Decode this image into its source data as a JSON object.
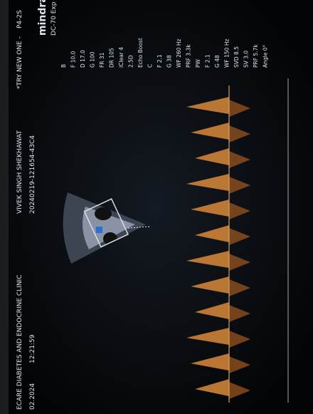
{
  "screen": {
    "clinic": "ECARE DIABETES AND ENDOCRINE CLINIC",
    "patient": "VIVEK SINGH SHEKHAWAT",
    "note": "*TRY NEW ONE -",
    "probe": "P4-2S",
    "brand": "mindray",
    "model": "DC-70 Exp",
    "date": "02.2024",
    "time": "12:21:59",
    "study_id": "20240219-121654-43C4",
    "parameters": [
      "B",
      "F 10.0",
      "D 17.0",
      "G 100",
      "FR 31",
      "DR 105",
      "iClear 4",
      "2.5D",
      "Echo Boost",
      "C",
      "F 2.1",
      "G 38",
      "WF 260 Hz",
      "PRF 3.3k",
      "PW",
      "F 2.1",
      "G 48",
      "WF 150 Hz",
      "SVD 8.5",
      "SV 3.0",
      "PRF 5.7k",
      "Angle 0°"
    ]
  }
}
